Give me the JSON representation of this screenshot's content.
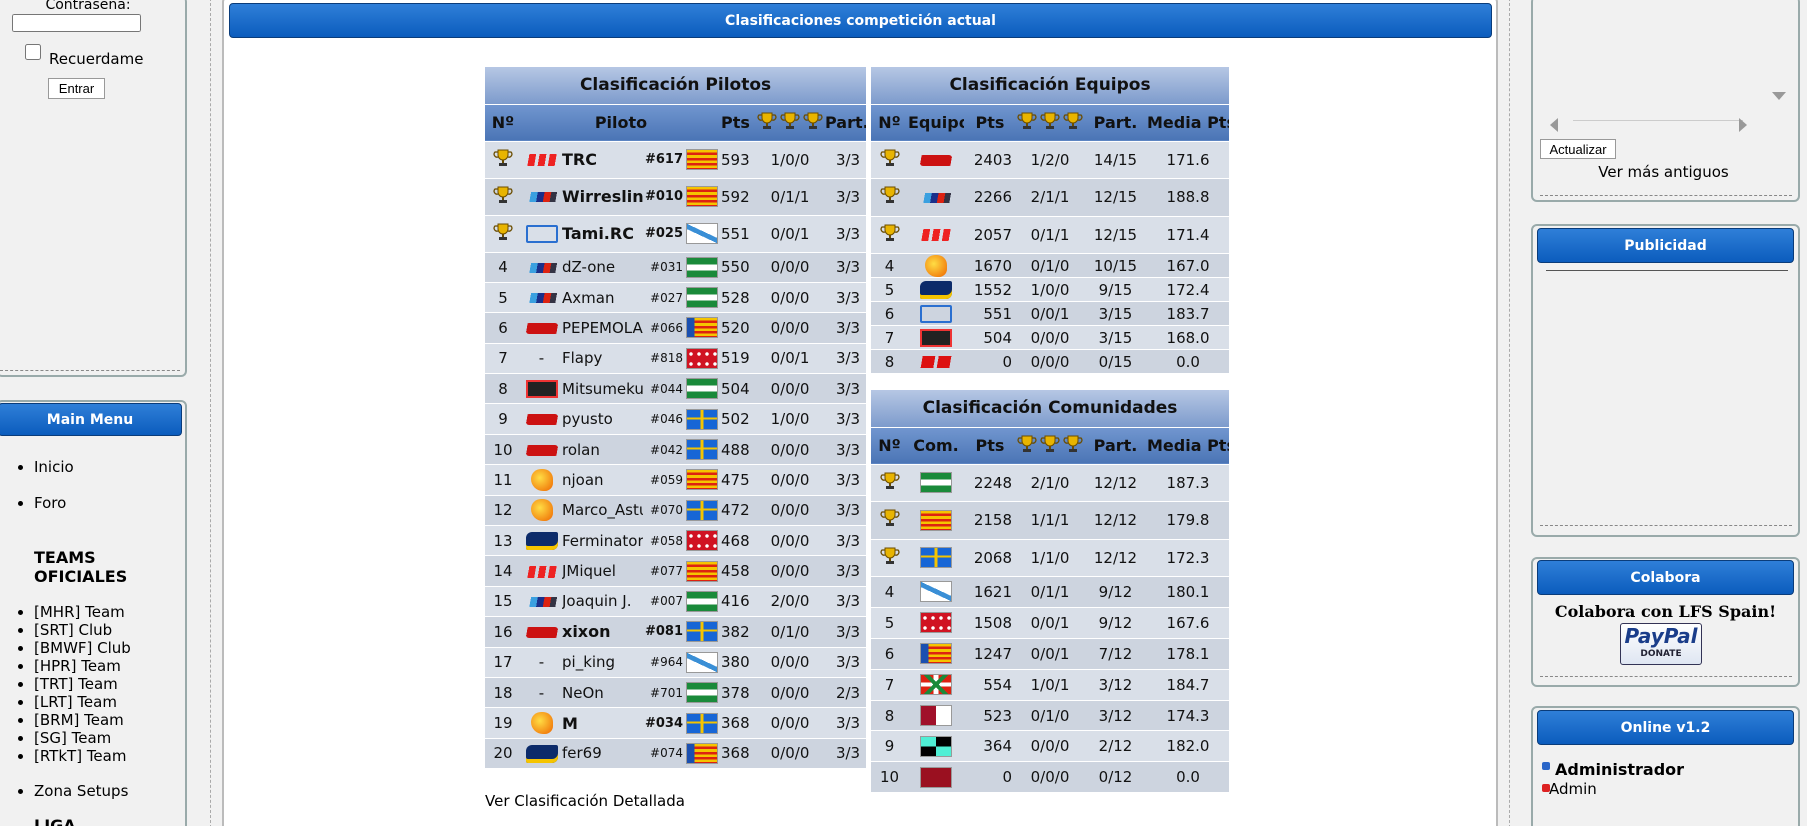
{
  "login": {
    "password_label": "Contraseña:",
    "remember": "Recuerdame",
    "submit": "Entrar"
  },
  "main_menu": {
    "title": "Main Menu",
    "items": [
      "Inicio",
      "Foro"
    ],
    "teams_heading": "TEAMS OFICIALES",
    "teams": [
      "[MHR] Team",
      "[SRT] Club",
      "[BMWF] Club",
      "[HPR] Team",
      "[TRT] Team",
      "[LRT] Team",
      "[BRM] Team",
      "[SG] Team",
      "[RTkT] Team"
    ],
    "items2": [
      "Zona Setups"
    ],
    "next_heading": "LIGA"
  },
  "banner": "Clasificaciones competición actual",
  "pilots": {
    "title": "Clasificación Pilotos",
    "headers": [
      "Nº",
      "Piloto",
      "Pts",
      "Part."
    ],
    "rows": [
      {
        "pos": null,
        "team": null,
        "name": "TRC",
        "number": "#617",
        "pts": "593",
        "trophies": "1/0/0",
        "part": "3/3"
      },
      {
        "pos": null,
        "team": null,
        "name": "Wirreslink",
        "number": "#010",
        "pts": "592",
        "trophies": "0/1/1",
        "part": "3/3"
      },
      {
        "pos": null,
        "team": null,
        "name": "Tami.RC",
        "number": "#025",
        "pts": "551",
        "trophies": "0/0/1",
        "part": "3/3"
      },
      {
        "pos": "4",
        "team": null,
        "name": "dZ-one",
        "number": "#031",
        "pts": "550",
        "trophies": "0/0/0",
        "part": "3/3"
      },
      {
        "pos": "5",
        "team": null,
        "name": "Axman",
        "number": "#027",
        "pts": "528",
        "trophies": "0/0/0",
        "part": "3/3"
      },
      {
        "pos": "6",
        "team": null,
        "name": "PEPEMOLA",
        "number": "#066",
        "pts": "520",
        "trophies": "0/0/0",
        "part": "3/3"
      },
      {
        "pos": "7",
        "team": "-",
        "name": "Flapy",
        "number": "#818",
        "pts": "519",
        "trophies": "0/0/1",
        "part": "3/3"
      },
      {
        "pos": "8",
        "team": null,
        "name": "Mitsumeku",
        "number": "#044",
        "pts": "504",
        "trophies": "0/0/0",
        "part": "3/3"
      },
      {
        "pos": "9",
        "team": null,
        "name": "pyusto",
        "number": "#046",
        "pts": "502",
        "trophies": "1/0/0",
        "part": "3/3"
      },
      {
        "pos": "10",
        "team": null,
        "name": "rolan",
        "number": "#042",
        "pts": "488",
        "trophies": "0/0/0",
        "part": "3/3"
      },
      {
        "pos": "11",
        "team": null,
        "name": "njoan",
        "number": "#059",
        "pts": "475",
        "trophies": "0/0/0",
        "part": "3/3"
      },
      {
        "pos": "12",
        "team": null,
        "name": "Marco_Astur",
        "number": "#070",
        "pts": "472",
        "trophies": "0/0/0",
        "part": "3/3"
      },
      {
        "pos": "13",
        "team": null,
        "name": "Ferminator",
        "number": "#058",
        "pts": "468",
        "trophies": "0/0/0",
        "part": "3/3"
      },
      {
        "pos": "14",
        "team": null,
        "name": "JMiquel",
        "number": "#077",
        "pts": "458",
        "trophies": "0/0/0",
        "part": "3/3"
      },
      {
        "pos": "15",
        "team": null,
        "name": "Joaquin J.",
        "number": "#007",
        "pts": "416",
        "trophies": "2/0/0",
        "part": "3/3"
      },
      {
        "pos": "16",
        "team": null,
        "name": "xixon",
        "number": "#081",
        "pts": "382",
        "trophies": "0/1/0",
        "part": "3/3"
      },
      {
        "pos": "17",
        "team": "-",
        "name": "pi_king",
        "number": "#964",
        "pts": "380",
        "trophies": "0/0/0",
        "part": "3/3"
      },
      {
        "pos": "18",
        "team": "-",
        "name": "NeOn",
        "number": "#701",
        "pts": "378",
        "trophies": "0/0/0",
        "part": "2/3"
      },
      {
        "pos": "19",
        "team": null,
        "name": "M",
        "number": "#034",
        "pts": "368",
        "trophies": "0/0/0",
        "part": "3/3"
      },
      {
        "pos": "20",
        "team": null,
        "name": "fer69",
        "number": "#074",
        "pts": "368",
        "trophies": "0/0/0",
        "part": "3/3"
      }
    ]
  },
  "teams": {
    "title": "Clasificación Equipos",
    "headers": [
      "Nº",
      "Equipo",
      "Pts",
      "Part.",
      "Media Pts."
    ],
    "rows": [
      {
        "pos": null,
        "pts": "2403",
        "trophies": "1/2/0",
        "part": "14/15",
        "avg": "171.6"
      },
      {
        "pos": null,
        "pts": "2266",
        "trophies": "2/1/1",
        "part": "12/15",
        "avg": "188.8"
      },
      {
        "pos": null,
        "pts": "2057",
        "trophies": "0/1/1",
        "part": "12/15",
        "avg": "171.4"
      },
      {
        "pos": "4",
        "pts": "1670",
        "trophies": "0/1/0",
        "part": "10/15",
        "avg": "167.0"
      },
      {
        "pos": "5",
        "pts": "1552",
        "trophies": "1/0/0",
        "part": "9/15",
        "avg": "172.4"
      },
      {
        "pos": "6",
        "pts": "551",
        "trophies": "0/0/1",
        "part": "3/15",
        "avg": "183.7"
      },
      {
        "pos": "7",
        "pts": "504",
        "trophies": "0/0/0",
        "part": "3/15",
        "avg": "168.0"
      },
      {
        "pos": "8",
        "pts": "0",
        "trophies": "0/0/0",
        "part": "0/15",
        "avg": "0.0"
      }
    ]
  },
  "communities": {
    "title": "Clasificación Comunidades",
    "headers": [
      "Nº",
      "Com.",
      "Pts",
      "Part.",
      "Media Pts."
    ],
    "rows": [
      {
        "pos": null,
        "pts": "2248",
        "trophies": "2/1/0",
        "part": "12/12",
        "avg": "187.3"
      },
      {
        "pos": null,
        "pts": "2158",
        "trophies": "1/1/1",
        "part": "12/12",
        "avg": "179.8"
      },
      {
        "pos": null,
        "pts": "2068",
        "trophies": "1/1/0",
        "part": "12/12",
        "avg": "172.3"
      },
      {
        "pos": "4",
        "pts": "1621",
        "trophies": "0/1/1",
        "part": "9/12",
        "avg": "180.1"
      },
      {
        "pos": "5",
        "pts": "1508",
        "trophies": "0/0/1",
        "part": "9/12",
        "avg": "167.6"
      },
      {
        "pos": "6",
        "pts": "1247",
        "trophies": "0/0/1",
        "part": "7/12",
        "avg": "178.1"
      },
      {
        "pos": "7",
        "pts": "554",
        "trophies": "1/0/1",
        "part": "3/12",
        "avg": "184.7"
      },
      {
        "pos": "8",
        "pts": "523",
        "trophies": "0/1/0",
        "part": "3/12",
        "avg": "174.3"
      },
      {
        "pos": "9",
        "pts": "364",
        "trophies": "0/0/0",
        "part": "2/12",
        "avg": "182.0"
      },
      {
        "pos": "10",
        "pts": "0",
        "trophies": "0/0/0",
        "part": "0/12",
        "avg": "0.0"
      }
    ]
  },
  "details_link": "Ver Clasificación Detallada",
  "shoutbox": {
    "refresh": "Actualizar",
    "older": "Ver más antiguos"
  },
  "ads": {
    "title": "Publicidad"
  },
  "donate": {
    "title": "Colabora",
    "text": "Colabora con LFS Spain!",
    "paypal": "PayPal",
    "paypal_sub": "DONATE"
  },
  "online": {
    "title": "Online v1.2",
    "users": [
      "Administrador",
      "Admin"
    ]
  }
}
